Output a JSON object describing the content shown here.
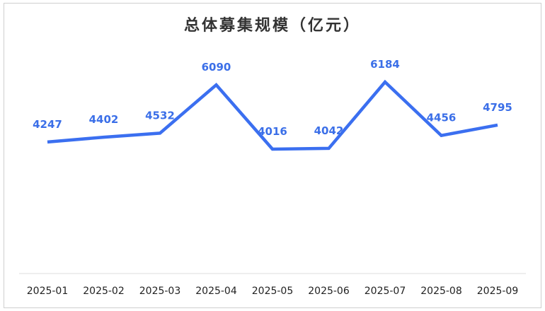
{
  "title": "总体募集规模（亿元）",
  "colors": {
    "line": "#3b6ff0",
    "label": "#3b6fe8",
    "drop_line": "#9dbaf5",
    "axis": "#dddddd"
  },
  "chart_data": {
    "type": "line",
    "title": "总体募集规模（亿元）",
    "xlabel": "",
    "ylabel": "",
    "categories": [
      "2025-01",
      "2025-02",
      "2025-03",
      "2025-04",
      "2025-05",
      "2025-06",
      "2025-07",
      "2025-08",
      "2025-09"
    ],
    "series": [
      {
        "name": "总体募集规模（亿元）",
        "values": [
          4247,
          4402,
          4532,
          6090,
          4016,
          4042,
          6184,
          4456,
          4795
        ]
      }
    ],
    "data_labels": true,
    "grid": false,
    "legend": "none",
    "y_axis_visible": false
  }
}
